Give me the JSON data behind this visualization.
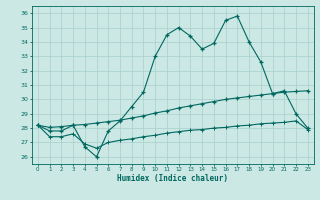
{
  "xlabel": "Humidex (Indice chaleur)",
  "xlim": [
    -0.5,
    23.5
  ],
  "ylim": [
    25.5,
    36.5
  ],
  "yticks": [
    26,
    27,
    28,
    29,
    30,
    31,
    32,
    33,
    34,
    35,
    36
  ],
  "xticks": [
    0,
    1,
    2,
    3,
    4,
    5,
    6,
    7,
    8,
    9,
    10,
    11,
    12,
    13,
    14,
    15,
    16,
    17,
    18,
    19,
    20,
    21,
    22,
    23
  ],
  "bg_color": "#cce8e4",
  "line_color": "#006860",
  "grid_color": "#a8d0cc",
  "series1": [
    28.2,
    27.8,
    27.8,
    28.2,
    26.7,
    26.0,
    27.8,
    28.5,
    29.5,
    30.5,
    33.0,
    34.5,
    35.0,
    34.4,
    33.5,
    33.9,
    35.5,
    35.8,
    34.0,
    32.6,
    30.4,
    30.6,
    29.0,
    28.0
  ],
  "series2": [
    28.2,
    28.05,
    28.1,
    28.2,
    28.25,
    28.35,
    28.45,
    28.55,
    28.7,
    28.85,
    29.05,
    29.2,
    29.4,
    29.55,
    29.7,
    29.85,
    30.0,
    30.1,
    30.2,
    30.3,
    30.4,
    30.5,
    30.55,
    30.6
  ],
  "series3": [
    28.2,
    27.4,
    27.4,
    27.6,
    26.9,
    26.6,
    27.0,
    27.15,
    27.25,
    27.4,
    27.5,
    27.65,
    27.75,
    27.85,
    27.9,
    28.0,
    28.05,
    28.15,
    28.2,
    28.3,
    28.35,
    28.4,
    28.5,
    27.9
  ]
}
